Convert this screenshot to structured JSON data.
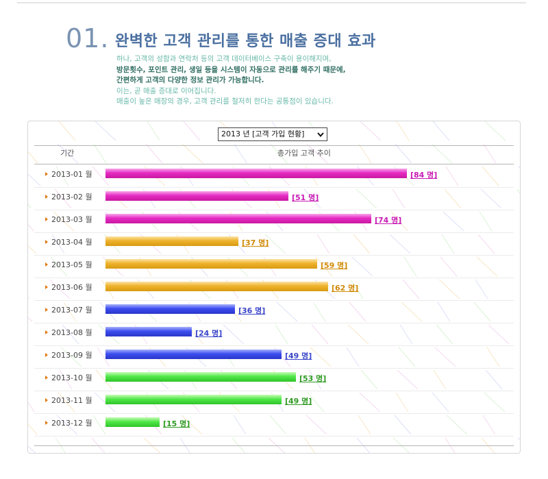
{
  "section": {
    "number": "01.",
    "title": "완벽한 고객 관리를 통한 매출 증대 효과"
  },
  "description": [
    {
      "text": "하나, 고객의 성함과 연락처 등의 고객 데이터베이스 구축이 용이해지며,",
      "style": "light"
    },
    {
      "text": "방문횟수, 포인트 관리, 생일 등을 시스템이 자동으로 관리를 해주기 때문에,",
      "style": "dark"
    },
    {
      "text": "간편하게 고객의 다양한 정보 관리가 가능합니다.",
      "style": "dark"
    },
    {
      "text": "이는, 곧 매출 증대로 이어집니다.",
      "style": "light"
    },
    {
      "text": "매출이 높은 매장의 경우, 고객 관리를 철저히 한다는 공통점이 있습니다.",
      "style": "light"
    }
  ],
  "selector": {
    "value": "2013 년 [고객 가입 현황]"
  },
  "chart_data": {
    "type": "bar",
    "orientation": "horizontal",
    "columns": {
      "period": "기간",
      "value": "총가입 고객 추이"
    },
    "categories": [
      "2013-01 월",
      "2013-02 월",
      "2013-03 월",
      "2013-04 월",
      "2013-05 월",
      "2013-06 월",
      "2013-07 월",
      "2013-08 월",
      "2013-09 월",
      "2013-10 월",
      "2013-11 월",
      "2013-12 월"
    ],
    "values": [
      84,
      51,
      74,
      37,
      59,
      62,
      36,
      24,
      49,
      53,
      49,
      15
    ],
    "value_labels": [
      "[84 명]",
      "[51 명]",
      "[74 명]",
      "[37 명]",
      "[59 명]",
      "[62 명]",
      "[36 명]",
      "[24 명]",
      "[49 명]",
      "[53 명]",
      "[49 명]",
      "[15 명]"
    ],
    "bar_colors": [
      "#e62bc4",
      "#e62bc4",
      "#e62bc4",
      "#eeb32c",
      "#eeb32c",
      "#eeb32c",
      "#3d4ef0",
      "#3d4ef0",
      "#3d4ef0",
      "#52e84a",
      "#52e84a",
      "#52e84a"
    ],
    "label_colors": [
      "#c81bb4",
      "#c81bb4",
      "#c81bb4",
      "#d08a06",
      "#d08a06",
      "#d08a06",
      "#3a46c8",
      "#3a46c8",
      "#3a46c8",
      "#2e9a22",
      "#2e9a22",
      "#2e9a22"
    ]
  }
}
